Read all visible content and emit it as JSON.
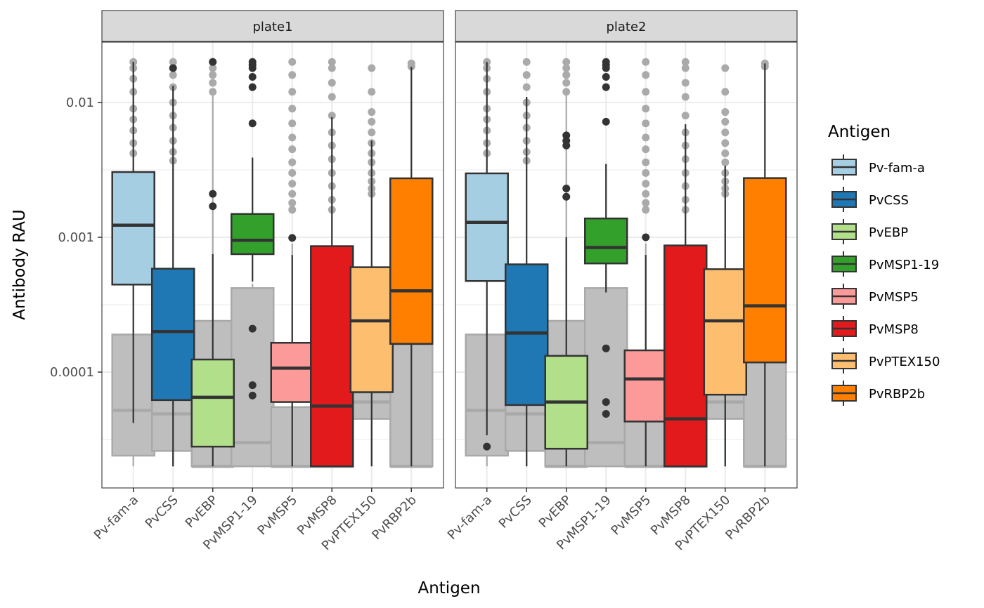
{
  "chart_data": {
    "type": "boxplot",
    "subtype": "faceted box plot with background (negative control) boxes",
    "xlabel": "Antigen",
    "ylabel": "Antibody RAU",
    "yscale": "log10",
    "ylim": [
      1.35e-05,
      0.0265
    ],
    "yticks": [
      0.0001,
      0.001,
      0.01
    ],
    "ytick_labels": [
      "0.0001",
      "0.001",
      "0.01"
    ],
    "grid": true,
    "legend": {
      "title": "Antigen",
      "position": "right",
      "entries": [
        "Pv-fam-a",
        "PvCSS",
        "PvEBP",
        "PvMSP1-19",
        "PvMSP5",
        "PvMSP8",
        "PvPTEX150",
        "PvRBP2b"
      ]
    },
    "categories": [
      "Pv-fam-a",
      "PvCSS",
      "PvEBP",
      "PvMSP1-19",
      "PvMSP5",
      "PvMSP8",
      "PvPTEX150",
      "PvRBP2b"
    ],
    "colors": {
      "Pv-fam-a": "#a6cee3",
      "PvCSS": "#1f78b4",
      "PvEBP": "#b2df8a",
      "PvMSP1-19": "#33a02c",
      "PvMSP5": "#fb9a99",
      "PvMSP8": "#e31a1c",
      "PvPTEX150": "#fdbf6f",
      "PvRBP2b": "#ff7f00"
    },
    "background_color": "#bebebe",
    "panels": [
      {
        "facet": "plate1",
        "background_boxes": [
          {
            "antigen": "Pv-fam-a",
            "lower": 2e-05,
            "q1": 2.4e-05,
            "median": 5.2e-05,
            "q3": 0.00019,
            "upper": 0.00019,
            "outliers": [
              0.02,
              0.018,
              0.015,
              0.012,
              0.009,
              0.0075,
              0.0062,
              0.005,
              0.0042
            ]
          },
          {
            "antigen": "PvCSS",
            "lower": 2e-05,
            "q1": 2.6e-05,
            "median": 4.9e-05,
            "q3": 0.00019,
            "upper": 0.00019,
            "outliers": [
              0.02,
              0.016,
              0.013,
              0.01,
              0.008,
              0.0065,
              0.0052,
              0.0043,
              0.0037
            ]
          },
          {
            "antigen": "PvEBP",
            "lower": 2e-05,
            "q1": 2e-05,
            "median": 2e-05,
            "q3": 0.00024,
            "upper": 0.012,
            "outliers": [
              0.02,
              0.018,
              0.016,
              0.014,
              0.012
            ]
          },
          {
            "antigen": "PvMSP1-19",
            "lower": 2e-05,
            "q1": 2e-05,
            "median": 3e-05,
            "q3": 0.00042,
            "upper": 0.00045,
            "outliers": []
          },
          {
            "antigen": "PvMSP5",
            "lower": 2e-05,
            "q1": 2e-05,
            "median": 2e-05,
            "q3": 5.5e-05,
            "upper": 0.0009,
            "outliers": [
              0.02,
              0.016,
              0.012,
              0.009,
              0.007,
              0.0055,
              0.0045,
              0.0036,
              0.003,
              0.0025,
              0.0021,
              0.0018,
              0.0016
            ]
          },
          {
            "antigen": "PvMSP8",
            "lower": 2e-05,
            "q1": 2e-05,
            "median": 2e-05,
            "q3": 2e-05,
            "upper": 2e-05,
            "outliers": [
              0.02,
              0.018,
              0.014,
              0.011,
              0.008,
              0.006,
              0.0048,
              0.0038,
              0.003,
              0.0024,
              0.0019,
              0.0016
            ]
          },
          {
            "antigen": "PvPTEX150",
            "lower": 2e-05,
            "q1": 4.5e-05,
            "median": 6e-05,
            "q3": 7e-05,
            "upper": 7e-05,
            "outliers": [
              0.018,
              0.012,
              0.0085,
              0.0072,
              0.006,
              0.005,
              0.0042,
              0.0036,
              0.003,
              0.0026,
              0.0023,
              0.0021
            ]
          },
          {
            "antigen": "PvRBP2b",
            "lower": 2e-05,
            "q1": 2e-05,
            "median": 2e-05,
            "q3": 0.00016,
            "upper": 0.00016,
            "outliers": [
              0.0195,
              0.0185
            ]
          }
        ],
        "boxes": [
          {
            "antigen": "Pv-fam-a",
            "lower": 4.2e-05,
            "q1": 0.000446,
            "median": 0.00123,
            "q3": 0.00305,
            "upper": 0.02,
            "outliers": []
          },
          {
            "antigen": "PvCSS",
            "lower": 2e-05,
            "q1": 6.2e-05,
            "median": 0.0002,
            "q3": 0.000585,
            "upper": 0.0133,
            "outliers": [
              0.018
            ]
          },
          {
            "antigen": "PvEBP",
            "lower": 2e-05,
            "q1": 2.8e-05,
            "median": 6.5e-05,
            "q3": 0.000124,
            "upper": 0.00075,
            "outliers": [
              0.02,
              0.0021,
              0.0017
            ]
          },
          {
            "antigen": "PvMSP1-19",
            "lower": 0.00047,
            "q1": 0.00075,
            "median": 0.00095,
            "q3": 0.00149,
            "upper": 0.0039,
            "outliers": [
              0.02,
              0.019,
              0.018,
              0.0155,
              0.013,
              0.007,
              0.00021,
              8e-05,
              6.7e-05
            ]
          },
          {
            "antigen": "PvMSP5",
            "lower": 2e-05,
            "q1": 6e-05,
            "median": 0.000107,
            "q3": 0.000165,
            "upper": 0.00074,
            "outliers": [
              0.00099
            ]
          },
          {
            "antigen": "PvMSP8",
            "lower": 2e-05,
            "q1": 2e-05,
            "median": 5.6e-05,
            "q3": 0.00086,
            "upper": 0.0078,
            "outliers": []
          },
          {
            "antigen": "PvPTEX150",
            "lower": 2e-05,
            "q1": 7.1e-05,
            "median": 0.00024,
            "q3": 0.0006,
            "upper": 0.0052,
            "outliers": []
          },
          {
            "antigen": "PvRBP2b",
            "lower": 2e-05,
            "q1": 0.000162,
            "median": 0.000401,
            "q3": 0.00274,
            "upper": 0.0184,
            "outliers": []
          }
        ]
      },
      {
        "facet": "plate2",
        "background_boxes": [
          {
            "antigen": "Pv-fam-a",
            "lower": 2e-05,
            "q1": 2.4e-05,
            "median": 5.2e-05,
            "q3": 0.00019,
            "upper": 0.00019,
            "outliers": [
              0.02,
              0.018,
              0.015,
              0.012,
              0.009,
              0.0075,
              0.0062,
              0.005,
              0.0042
            ]
          },
          {
            "antigen": "PvCSS",
            "lower": 2e-05,
            "q1": 2.6e-05,
            "median": 4.9e-05,
            "q3": 0.00019,
            "upper": 0.00019,
            "outliers": [
              0.02,
              0.016,
              0.013,
              0.01,
              0.008,
              0.0065,
              0.0052,
              0.0043,
              0.0037
            ]
          },
          {
            "antigen": "PvEBP",
            "lower": 2e-05,
            "q1": 2e-05,
            "median": 2e-05,
            "q3": 0.00024,
            "upper": 0.012,
            "outliers": [
              0.02,
              0.018,
              0.016,
              0.014,
              0.012
            ]
          },
          {
            "antigen": "PvMSP1-19",
            "lower": 2e-05,
            "q1": 2e-05,
            "median": 3e-05,
            "q3": 0.00042,
            "upper": 0.00045,
            "outliers": []
          },
          {
            "antigen": "PvMSP5",
            "lower": 2e-05,
            "q1": 2e-05,
            "median": 2e-05,
            "q3": 5.5e-05,
            "upper": 0.0009,
            "outliers": [
              0.02,
              0.016,
              0.012,
              0.009,
              0.007,
              0.0055,
              0.0045,
              0.0036,
              0.003,
              0.0025,
              0.0021,
              0.0018,
              0.0016
            ]
          },
          {
            "antigen": "PvMSP8",
            "lower": 2e-05,
            "q1": 2e-05,
            "median": 2e-05,
            "q3": 2e-05,
            "upper": 2e-05,
            "outliers": [
              0.02,
              0.018,
              0.014,
              0.011,
              0.008,
              0.006,
              0.0048,
              0.0038,
              0.003,
              0.0024,
              0.0019,
              0.0016
            ]
          },
          {
            "antigen": "PvPTEX150",
            "lower": 2e-05,
            "q1": 4.5e-05,
            "median": 6e-05,
            "q3": 7e-05,
            "upper": 7e-05,
            "outliers": [
              0.018,
              0.012,
              0.0085,
              0.0072,
              0.006,
              0.005,
              0.0042,
              0.0036,
              0.003,
              0.0026,
              0.0023,
              0.0021
            ]
          },
          {
            "antigen": "PvRBP2b",
            "lower": 2e-05,
            "q1": 2e-05,
            "median": 2e-05,
            "q3": 0.00016,
            "upper": 0.00016,
            "outliers": [
              0.0195,
              0.0185
            ]
          }
        ],
        "boxes": [
          {
            "antigen": "Pv-fam-a",
            "lower": 3.4e-05,
            "q1": 0.000474,
            "median": 0.00129,
            "q3": 0.00298,
            "upper": 0.02,
            "outliers": [
              2.8e-05
            ]
          },
          {
            "antigen": "PvCSS",
            "lower": 2e-05,
            "q1": 5.7e-05,
            "median": 0.000195,
            "q3": 0.00063,
            "upper": 0.011,
            "outliers": []
          },
          {
            "antigen": "PvEBP",
            "lower": 2e-05,
            "q1": 2.7e-05,
            "median": 6e-05,
            "q3": 0.000132,
            "upper": 0.001,
            "outliers": [
              0.0057,
              0.0052,
              0.0048,
              0.0023,
              0.002
            ]
          },
          {
            "antigen": "PvMSP1-19",
            "lower": 0.00039,
            "q1": 0.00064,
            "median": 0.00084,
            "q3": 0.00138,
            "upper": 0.0035,
            "outliers": [
              0.02,
              0.019,
              0.018,
              0.0155,
              0.013,
              0.0072,
              0.00015,
              6e-05,
              4.9e-05
            ]
          },
          {
            "antigen": "PvMSP5",
            "lower": 2e-05,
            "q1": 4.3e-05,
            "median": 8.9e-05,
            "q3": 0.000145,
            "upper": 0.00074,
            "outliers": [
              0.001
            ]
          },
          {
            "antigen": "PvMSP8",
            "lower": 2e-05,
            "q1": 2e-05,
            "median": 4.5e-05,
            "q3": 0.00087,
            "upper": 0.0069,
            "outliers": []
          },
          {
            "antigen": "PvPTEX150",
            "lower": 2e-05,
            "q1": 6.8e-05,
            "median": 0.00024,
            "q3": 0.00058,
            "upper": 0.0034,
            "outliers": []
          },
          {
            "antigen": "PvRBP2b",
            "lower": 2e-05,
            "q1": 0.000118,
            "median": 0.00031,
            "q3": 0.00275,
            "upper": 0.0195,
            "outliers": []
          }
        ]
      }
    ]
  }
}
